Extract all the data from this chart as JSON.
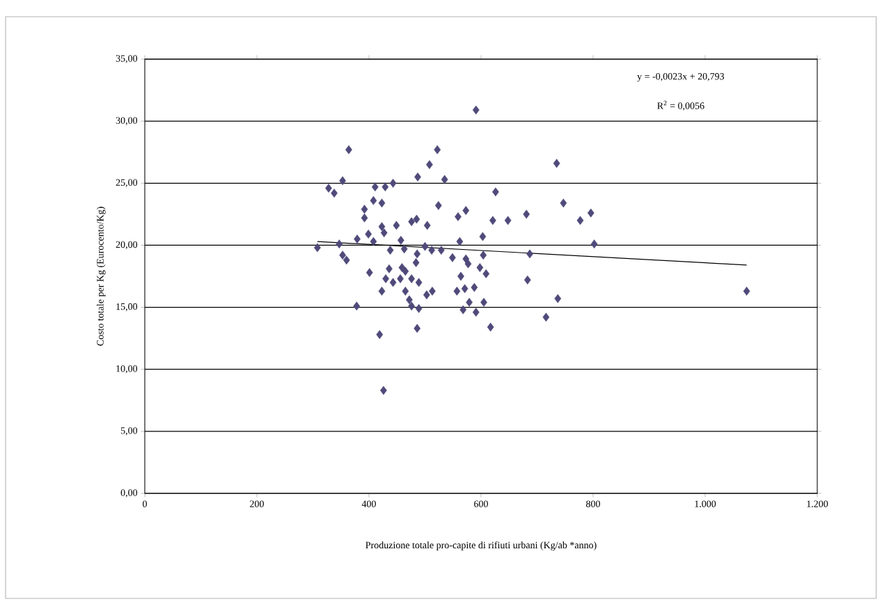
{
  "chart_data": {
    "type": "scatter",
    "xlabel": "Produzione totale pro-capite di rifiuti urbani (Kg/ab *anno)",
    "ylabel": "Costo totale per Kg (Eurocento/Kg)",
    "annotations": [
      "y = -0,0023x + 20,793",
      "R$^{2}$ = 0,0056"
    ],
    "xlim": [
      0,
      1200
    ],
    "xticks": [
      0,
      200,
      400,
      600,
      800,
      {
        "value": 1000,
        "label": "1.000"
      },
      {
        "value": 1200,
        "label": "1.200"
      }
    ],
    "ylim": [
      0,
      35
    ],
    "yticks": [
      {
        "value": 0,
        "label": "0,00"
      },
      {
        "value": 5,
        "label": "5,00"
      },
      {
        "value": 10,
        "label": "10,00"
      },
      {
        "value": 15,
        "label": "15,00"
      },
      {
        "value": 20,
        "label": "20,00"
      },
      {
        "value": 25,
        "label": "25,00"
      },
      {
        "value": 30,
        "label": "30,00"
      },
      {
        "value": 35,
        "label": "35,00"
      }
    ],
    "grid": "y",
    "series": [
      {
        "marker": "diamond",
        "color": "#4f4a7a",
        "x": [
          591,
          364,
          522,
          735,
          508,
          353,
          328,
          338,
          411,
          429,
          443,
          487,
          535,
          626,
          392,
          392,
          408,
          423,
          524,
          573,
          559,
          485,
          476,
          504,
          449,
          423,
          427,
          621,
          648,
          681,
          747,
          777,
          796,
          802,
          603,
          562,
          308,
          347,
          379,
          399,
          408,
          457,
          353,
          360,
          438,
          463,
          486,
          500,
          512,
          529,
          549,
          573,
          577,
          604,
          687,
          484,
          401,
          436,
          459,
          465,
          598,
          609,
          564,
          430,
          443,
          456,
          476,
          489,
          683,
          423,
          465,
          503,
          513,
          557,
          571,
          588,
          1074,
          378,
          472,
          476,
          489,
          568,
          579,
          591,
          605,
          737,
          716,
          617,
          486,
          419,
          426
        ],
        "values": [
          30.9,
          27.7,
          27.7,
          26.6,
          26.5,
          25.2,
          24.6,
          24.2,
          24.7,
          24.7,
          25.0,
          25.5,
          25.3,
          24.3,
          22.9,
          22.2,
          23.6,
          23.4,
          23.2,
          22.8,
          22.3,
          22.1,
          21.9,
          21.6,
          21.6,
          21.5,
          21.0,
          22.0,
          22.0,
          22.5,
          23.4,
          22.0,
          22.6,
          20.1,
          20.7,
          20.3,
          19.8,
          20.1,
          20.5,
          20.9,
          20.3,
          20.4,
          19.2,
          18.8,
          19.6,
          19.7,
          19.3,
          19.9,
          19.6,
          19.6,
          19.0,
          18.9,
          18.5,
          19.2,
          19.3,
          18.6,
          17.8,
          18.1,
          18.2,
          17.9,
          18.2,
          17.7,
          17.5,
          17.3,
          17.0,
          17.3,
          17.3,
          17.0,
          17.2,
          16.3,
          16.3,
          16.0,
          16.3,
          16.3,
          16.5,
          16.6,
          16.3,
          15.1,
          15.6,
          15.1,
          14.9,
          14.8,
          15.4,
          14.6,
          15.4,
          15.7,
          14.2,
          13.4,
          13.3,
          12.8,
          8.3
        ]
      },
      {
        "type": "line",
        "color": "#000000",
        "line_style": "solid",
        "x": [
          308,
          1074
        ],
        "values": [
          20.3,
          18.4
        ]
      }
    ]
  }
}
